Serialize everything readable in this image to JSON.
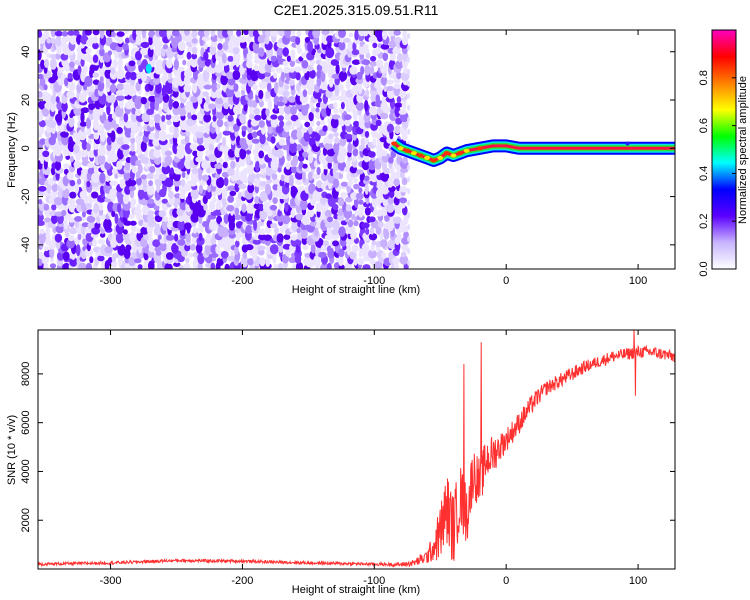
{
  "title": "C2E1.2025.315.09.51.R11",
  "chart_data": [
    {
      "type": "heatmap",
      "name": "spectrogram",
      "xlabel": "Height of straight line (km)",
      "ylabel": "Frequency (Hz)",
      "xlim": [
        -355,
        128
      ],
      "ylim": [
        -50,
        49
      ],
      "xticks": [
        -300,
        -200,
        -100,
        0,
        100
      ],
      "yticks": [
        -40,
        -20,
        0,
        20,
        40
      ],
      "data_extent_x": [
        -355,
        -75
      ],
      "narrowband_line": {
        "x_start": -90,
        "x_end": 128,
        "freq": 0,
        "path": [
          [
            -85,
            2
          ],
          [
            -80,
            0
          ],
          [
            -75,
            -1
          ],
          [
            -70,
            -2
          ],
          [
            -65,
            -3
          ],
          [
            -60,
            -4
          ],
          [
            -55,
            -5
          ],
          [
            -50,
            -4
          ],
          [
            -45,
            -2
          ],
          [
            -40,
            -3
          ],
          [
            -35,
            -2
          ],
          [
            -30,
            -1
          ],
          [
            -20,
            0
          ],
          [
            -10,
            1
          ],
          [
            0,
            1
          ],
          [
            10,
            0
          ],
          [
            128,
            0
          ]
        ]
      },
      "colorbar": {
        "label": "Normalized spectral amplitude",
        "range": [
          0,
          1
        ],
        "ticks": [
          0.0,
          0.2,
          0.4,
          0.6,
          0.8
        ],
        "tick_labels": [
          "0.0",
          "0.2",
          "0.4",
          "0.6",
          "0.8"
        ],
        "colors": [
          "#ffffff",
          "#c8b4ff",
          "#5a00ff",
          "#0000ff",
          "#00ffff",
          "#00ff00",
          "#ffff00",
          "#ff8000",
          "#ff0000",
          "#ff00c0"
        ]
      }
    },
    {
      "type": "line",
      "name": "snr",
      "xlabel": "Height of straight line (km)",
      "ylabel": "SNR (10 * v/v)",
      "xlim": [
        -355,
        128
      ],
      "ylim": [
        0,
        9800
      ],
      "xticks": [
        -300,
        -200,
        -100,
        0,
        100
      ],
      "yticks": [
        2000,
        4000,
        6000,
        8000
      ],
      "color": "#ff3030",
      "series": [
        {
          "name": "SNR",
          "x": [
            -355,
            -300,
            -250,
            -200,
            -150,
            -100,
            -80,
            -70,
            -60,
            -55,
            -50,
            -45,
            -40,
            -35,
            -30,
            -25,
            -20,
            -15,
            -10,
            -5,
            0,
            10,
            20,
            30,
            40,
            50,
            60,
            70,
            80,
            90,
            100,
            110,
            120,
            128
          ],
          "y": [
            200,
            250,
            350,
            320,
            250,
            200,
            180,
            250,
            500,
            900,
            1500,
            2500,
            1600,
            3000,
            2200,
            4000,
            3500,
            4500,
            4700,
            5000,
            5300,
            6000,
            6800,
            7400,
            7700,
            8000,
            8300,
            8500,
            8700,
            8800,
            8900,
            8900,
            8800,
            8700
          ],
          "noise": [
            60,
            60,
            60,
            60,
            60,
            60,
            80,
            150,
            300,
            600,
            1200,
            1500,
            1500,
            1400,
            1300,
            1100,
            1000,
            900,
            800,
            600,
            500,
            450,
            400,
            300,
            300,
            300,
            250,
            250,
            250,
            250,
            250,
            250,
            250,
            250
          ],
          "spikes": [
            {
              "x": -32,
              "y": 8400
            },
            {
              "x": -19,
              "y": 9300
            },
            {
              "x": 97,
              "y": 9800
            },
            {
              "x": 98,
              "y": 7100
            }
          ]
        }
      ]
    }
  ]
}
